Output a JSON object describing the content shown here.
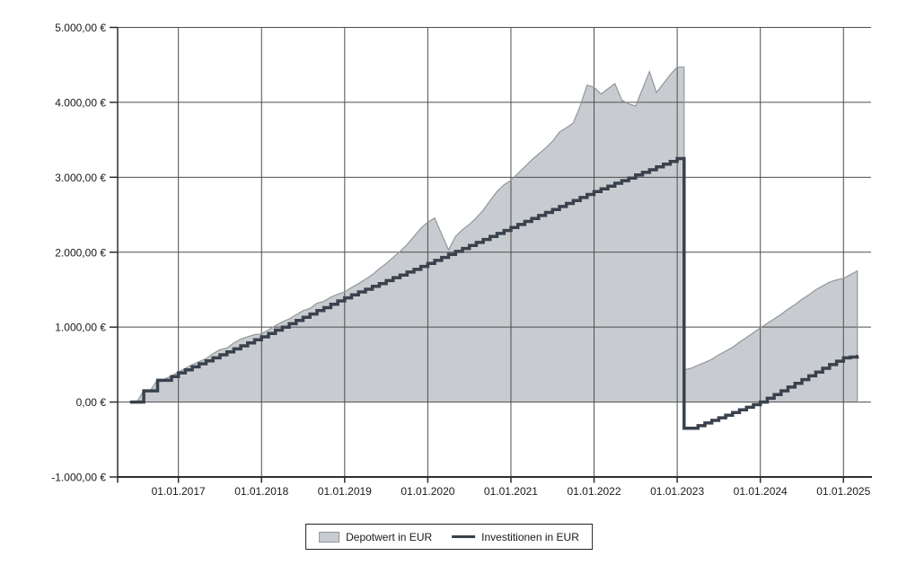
{
  "legend": {
    "items": [
      {
        "label": "Depotwert in EUR",
        "swatch": "area"
      },
      {
        "label": "Investitionen in EUR",
        "swatch": "line"
      }
    ]
  },
  "colors": {
    "background": "#ffffff",
    "area_fill": "#c8ccd0",
    "area_outline": "#90979d",
    "invest_line": "#39424c",
    "grid": "#4d4d4d",
    "axis": "#2e2e2e",
    "text": "#1a1a1a",
    "legend_border": "#222222"
  },
  "chart_data": {
    "type": "area",
    "title": "",
    "xlabel": "",
    "ylabel": "",
    "grid": true,
    "legend_position": "bottom-center",
    "ylim": [
      -1000,
      5000
    ],
    "y_tick_values": [
      5000,
      4000,
      3000,
      2000,
      1000,
      0,
      -1000
    ],
    "y_tick_labels": [
      "5.000,00 €",
      "4.000,00 €",
      "3.000,00 €",
      "2.000,00 €",
      "1.000,00 €",
      "0,00 €",
      "-1.000,00 €"
    ],
    "x_tick_years": [
      2017,
      2018,
      2019,
      2020,
      2021,
      2022,
      2023,
      2024,
      2025
    ],
    "x_tick_labels": [
      "01.01.2017",
      "01.01.2018",
      "01.01.2019",
      "01.01.2020",
      "01.01.2021",
      "01.01.2022",
      "01.01.2023",
      "01.01.2024",
      "01.01.2025"
    ],
    "x_start_month": "2016-06",
    "x_step": "1 month",
    "x_end_month": "2025-03",
    "series": [
      {
        "name": "Depotwert in EUR",
        "render": "area",
        "values": [
          0,
          0,
          155,
          160,
          300,
          305,
          350,
          400,
          450,
          500,
          540,
          580,
          645,
          700,
          720,
          790,
          840,
          870,
          900,
          910,
          965,
          1020,
          1070,
          1110,
          1165,
          1220,
          1250,
          1320,
          1345,
          1400,
          1440,
          1470,
          1530,
          1580,
          1640,
          1700,
          1780,
          1850,
          1930,
          2010,
          2100,
          2210,
          2320,
          2400,
          2455,
          2240,
          2030,
          2210,
          2300,
          2370,
          2460,
          2560,
          2690,
          2810,
          2900,
          2960,
          3050,
          3140,
          3230,
          3310,
          3390,
          3480,
          3605,
          3660,
          3725,
          3950,
          4230,
          4200,
          4110,
          4180,
          4250,
          4030,
          3980,
          3950,
          4180,
          4410,
          4130,
          4250,
          4370,
          4470,
          430,
          450,
          490,
          530,
          570,
          630,
          680,
          730,
          800,
          860,
          925,
          990,
          1050,
          1110,
          1170,
          1240,
          1300,
          1370,
          1430,
          1500,
          1550,
          1600,
          1630,
          1650,
          1700,
          1750
        ]
      },
      {
        "name": "Investitionen in EUR",
        "render": "step-line",
        "values": [
          0,
          0,
          150,
          150,
          290,
          290,
          340,
          390,
          430,
          470,
          510,
          550,
          590,
          630,
          670,
          710,
          750,
          790,
          830,
          870,
          915,
          960,
          1000,
          1045,
          1090,
          1130,
          1175,
          1220,
          1260,
          1305,
          1350,
          1390,
          1430,
          1470,
          1505,
          1545,
          1580,
          1620,
          1660,
          1695,
          1735,
          1770,
          1810,
          1850,
          1890,
          1930,
          1970,
          2010,
          2050,
          2090,
          2130,
          2170,
          2210,
          2250,
          2290,
          2330,
          2370,
          2410,
          2450,
          2490,
          2530,
          2570,
          2610,
          2650,
          2690,
          2730,
          2770,
          2810,
          2845,
          2880,
          2920,
          2955,
          2990,
          3030,
          3065,
          3100,
          3140,
          3175,
          3210,
          3250,
          -350,
          -350,
          -315,
          -280,
          -245,
          -210,
          -175,
          -140,
          -105,
          -70,
          -35,
          0,
          50,
          100,
          150,
          200,
          250,
          300,
          350,
          400,
          450,
          500,
          545,
          590,
          600,
          610
        ]
      }
    ]
  }
}
